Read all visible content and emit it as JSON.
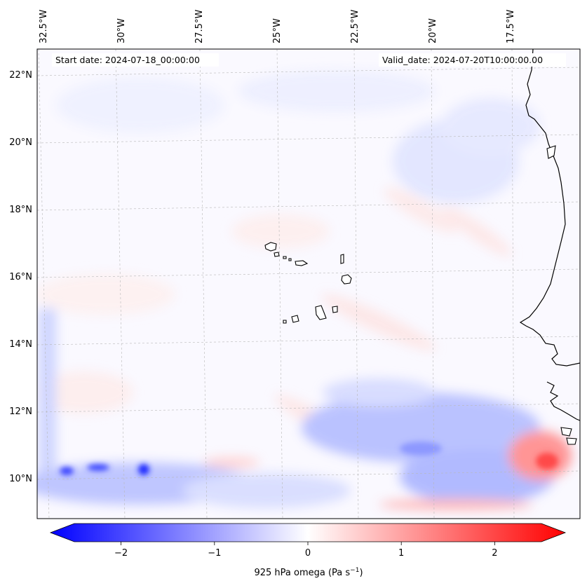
{
  "header": {
    "start_date": "Start date: 2024-07-18_00:00:00",
    "valid_date": "Valid_date: 2024-07-20T10:00:00.00"
  },
  "map": {
    "lon_labels": [
      "32.5°W",
      "30°W",
      "27.5°W",
      "25°W",
      "22.5°W",
      "20°W",
      "17.5°W"
    ],
    "lat_labels": [
      "22°N",
      "20°N",
      "18°N",
      "16°N",
      "14°N",
      "12°N",
      "10°N"
    ],
    "field": "925 hPa omega",
    "colors": {
      "negative": "#0000ff",
      "zero": "#ffffff",
      "positive": "#ff0000"
    }
  },
  "colorbar": {
    "ticks": [
      "−2",
      "−1",
      "0",
      "1",
      "2"
    ],
    "tick_values": [
      -2,
      -1,
      0,
      1,
      2
    ],
    "range": [
      -2.5,
      2.5
    ],
    "label_prefix": "925 hPa omega (Pa s",
    "label_exp": "−1",
    "label_suffix": ")"
  }
}
